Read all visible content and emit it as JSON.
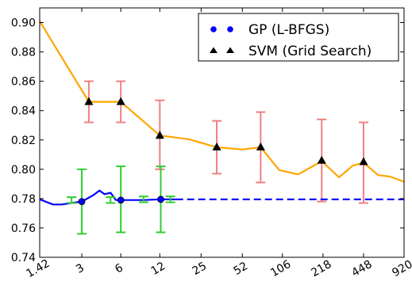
{
  "chart_data": {
    "type": "line",
    "title": "",
    "xlabel": "",
    "ylabel": "",
    "x_ticks": [
      "1.42",
      "3",
      "6",
      "12",
      "25",
      "52",
      "106",
      "218",
      "448",
      "920"
    ],
    "x_scale": "log",
    "xlim": [
      1.42,
      920
    ],
    "ylim": [
      0.74,
      0.91
    ],
    "y_ticks": [
      "0.74",
      "0.76",
      "0.78",
      "0.80",
      "0.82",
      "0.84",
      "0.86",
      "0.88",
      "0.90"
    ],
    "grid": false,
    "legend_position": "top-right",
    "colors": {
      "svm_line": "#ffa500",
      "svm_error": "#f08080",
      "gp_line": "#0000ff",
      "gp_error": "#32cd32",
      "marker": "#000000"
    },
    "series": [
      {
        "name": "GP (L-BFGS)",
        "marker": "circle",
        "line": [
          [
            1.42,
            0.7795
          ],
          [
            1.8,
            0.776
          ],
          [
            2.1,
            0.776
          ],
          [
            2.5,
            0.777
          ],
          [
            3.0,
            0.778
          ],
          [
            3.3,
            0.78
          ],
          [
            3.7,
            0.7825
          ],
          [
            4.1,
            0.7855
          ],
          [
            4.5,
            0.783
          ],
          [
            5.0,
            0.784
          ],
          [
            5.5,
            0.779
          ],
          [
            6.0,
            0.779
          ],
          [
            7.0,
            0.779
          ],
          [
            9.0,
            0.779
          ],
          [
            12.2,
            0.7795
          ],
          [
            16.0,
            0.7795
          ]
        ],
        "dashed_line": [
          [
            16.0,
            0.7795
          ],
          [
            920,
            0.7795
          ]
        ],
        "points": [
          {
            "x": 3.0,
            "y": 0.778,
            "err_low": 0.756,
            "err_high": 0.8
          },
          {
            "x": 6.0,
            "y": 0.779,
            "err_low": 0.757,
            "err_high": 0.802
          },
          {
            "x": 12.2,
            "y": 0.7795,
            "err_low": 0.757,
            "err_high": 0.802
          }
        ],
        "extra_error_bars": [
          {
            "x": 2.5,
            "err_low": 0.777,
            "err_high": 0.781
          },
          {
            "x": 5.0,
            "err_low": 0.777,
            "err_high": 0.781
          },
          {
            "x": 9.0,
            "err_low": 0.7775,
            "err_high": 0.7815
          },
          {
            "x": 14.5,
            "err_low": 0.7775,
            "err_high": 0.7815
          }
        ]
      },
      {
        "name": "SVM (Grid Search)",
        "marker": "triangle",
        "line": [
          [
            1.42,
            0.901
          ],
          [
            3.4,
            0.846
          ],
          [
            6.0,
            0.846
          ],
          [
            12.0,
            0.823
          ],
          [
            20.0,
            0.8205
          ],
          [
            33.0,
            0.815
          ],
          [
            52.0,
            0.8135
          ],
          [
            72.0,
            0.815
          ],
          [
            100.0,
            0.7995
          ],
          [
            140.0,
            0.7965
          ],
          [
            213.0,
            0.8055
          ],
          [
            290.0,
            0.7945
          ],
          [
            370.0,
            0.8025
          ],
          [
            448.0,
            0.8045
          ],
          [
            580.0,
            0.796
          ],
          [
            720.0,
            0.795
          ],
          [
            920.0,
            0.7915
          ]
        ],
        "points": [
          {
            "x": 3.4,
            "y": 0.846,
            "err_low": 0.832,
            "err_high": 0.86
          },
          {
            "x": 6.0,
            "y": 0.846,
            "err_low": 0.832,
            "err_high": 0.86
          },
          {
            "x": 12.0,
            "y": 0.823,
            "err_low": 0.8,
            "err_high": 0.847
          },
          {
            "x": 33.0,
            "y": 0.815,
            "err_low": 0.797,
            "err_high": 0.833
          },
          {
            "x": 72.0,
            "y": 0.815,
            "err_low": 0.791,
            "err_high": 0.839
          },
          {
            "x": 213.0,
            "y": 0.806,
            "err_low": 0.778,
            "err_high": 0.834
          },
          {
            "x": 448.0,
            "y": 0.805,
            "err_low": 0.777,
            "err_high": 0.832
          }
        ]
      }
    ]
  }
}
